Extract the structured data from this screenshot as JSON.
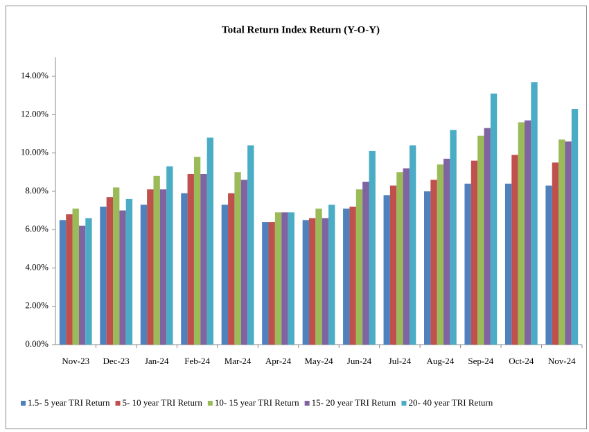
{
  "chart_data": {
    "type": "bar",
    "title": "Total Return Index Return (Y-O-Y)",
    "categories": [
      "Nov-23",
      "Dec-23",
      "Jan-24",
      "Feb-24",
      "Mar-24",
      "Apr-24",
      "May-24",
      "Jun-24",
      "Jul-24",
      "Aug-24",
      "Sep-24",
      "Oct-24",
      "Nov-24"
    ],
    "series": [
      {
        "name": "1.5- 5 year TRI Return",
        "color": "#4f81bd",
        "values": [
          6.5,
          7.2,
          7.3,
          7.9,
          7.3,
          6.4,
          6.5,
          7.1,
          7.8,
          8.0,
          8.4,
          8.4,
          8.3
        ]
      },
      {
        "name": "5- 10 year TRI Return",
        "color": "#c0504d",
        "values": [
          6.8,
          7.7,
          8.1,
          8.9,
          7.9,
          6.4,
          6.6,
          7.2,
          8.3,
          8.6,
          9.6,
          9.9,
          9.5
        ]
      },
      {
        "name": "10- 15 year TRI Return",
        "color": "#9bbb59",
        "values": [
          7.1,
          8.2,
          8.8,
          9.8,
          9.0,
          6.9,
          7.1,
          8.1,
          9.0,
          9.4,
          10.9,
          11.6,
          10.7
        ]
      },
      {
        "name": "15- 20 year TRI Return",
        "color": "#8064a2",
        "values": [
          6.2,
          7.0,
          8.1,
          8.9,
          8.6,
          6.9,
          6.6,
          8.5,
          9.2,
          9.7,
          11.3,
          11.7,
          10.6
        ]
      },
      {
        "name": "20- 40 year TRI Return",
        "color": "#4bacc6",
        "values": [
          6.6,
          7.6,
          9.3,
          10.8,
          10.4,
          6.9,
          7.3,
          10.1,
          10.4,
          11.2,
          13.1,
          13.7,
          12.3
        ]
      }
    ],
    "ylim": [
      0,
      15
    ],
    "yticks": [
      {
        "value": 0,
        "label": "0.00%"
      },
      {
        "value": 2,
        "label": "2.00%"
      },
      {
        "value": 4,
        "label": "4.00%"
      },
      {
        "value": 6,
        "label": "6.00%"
      },
      {
        "value": 8,
        "label": "8.00%"
      },
      {
        "value": 10,
        "label": "10.00%"
      },
      {
        "value": 12,
        "label": "12.00%"
      },
      {
        "value": 14,
        "label": "14.00%"
      }
    ],
    "grid": false,
    "legend": "bottom"
  }
}
